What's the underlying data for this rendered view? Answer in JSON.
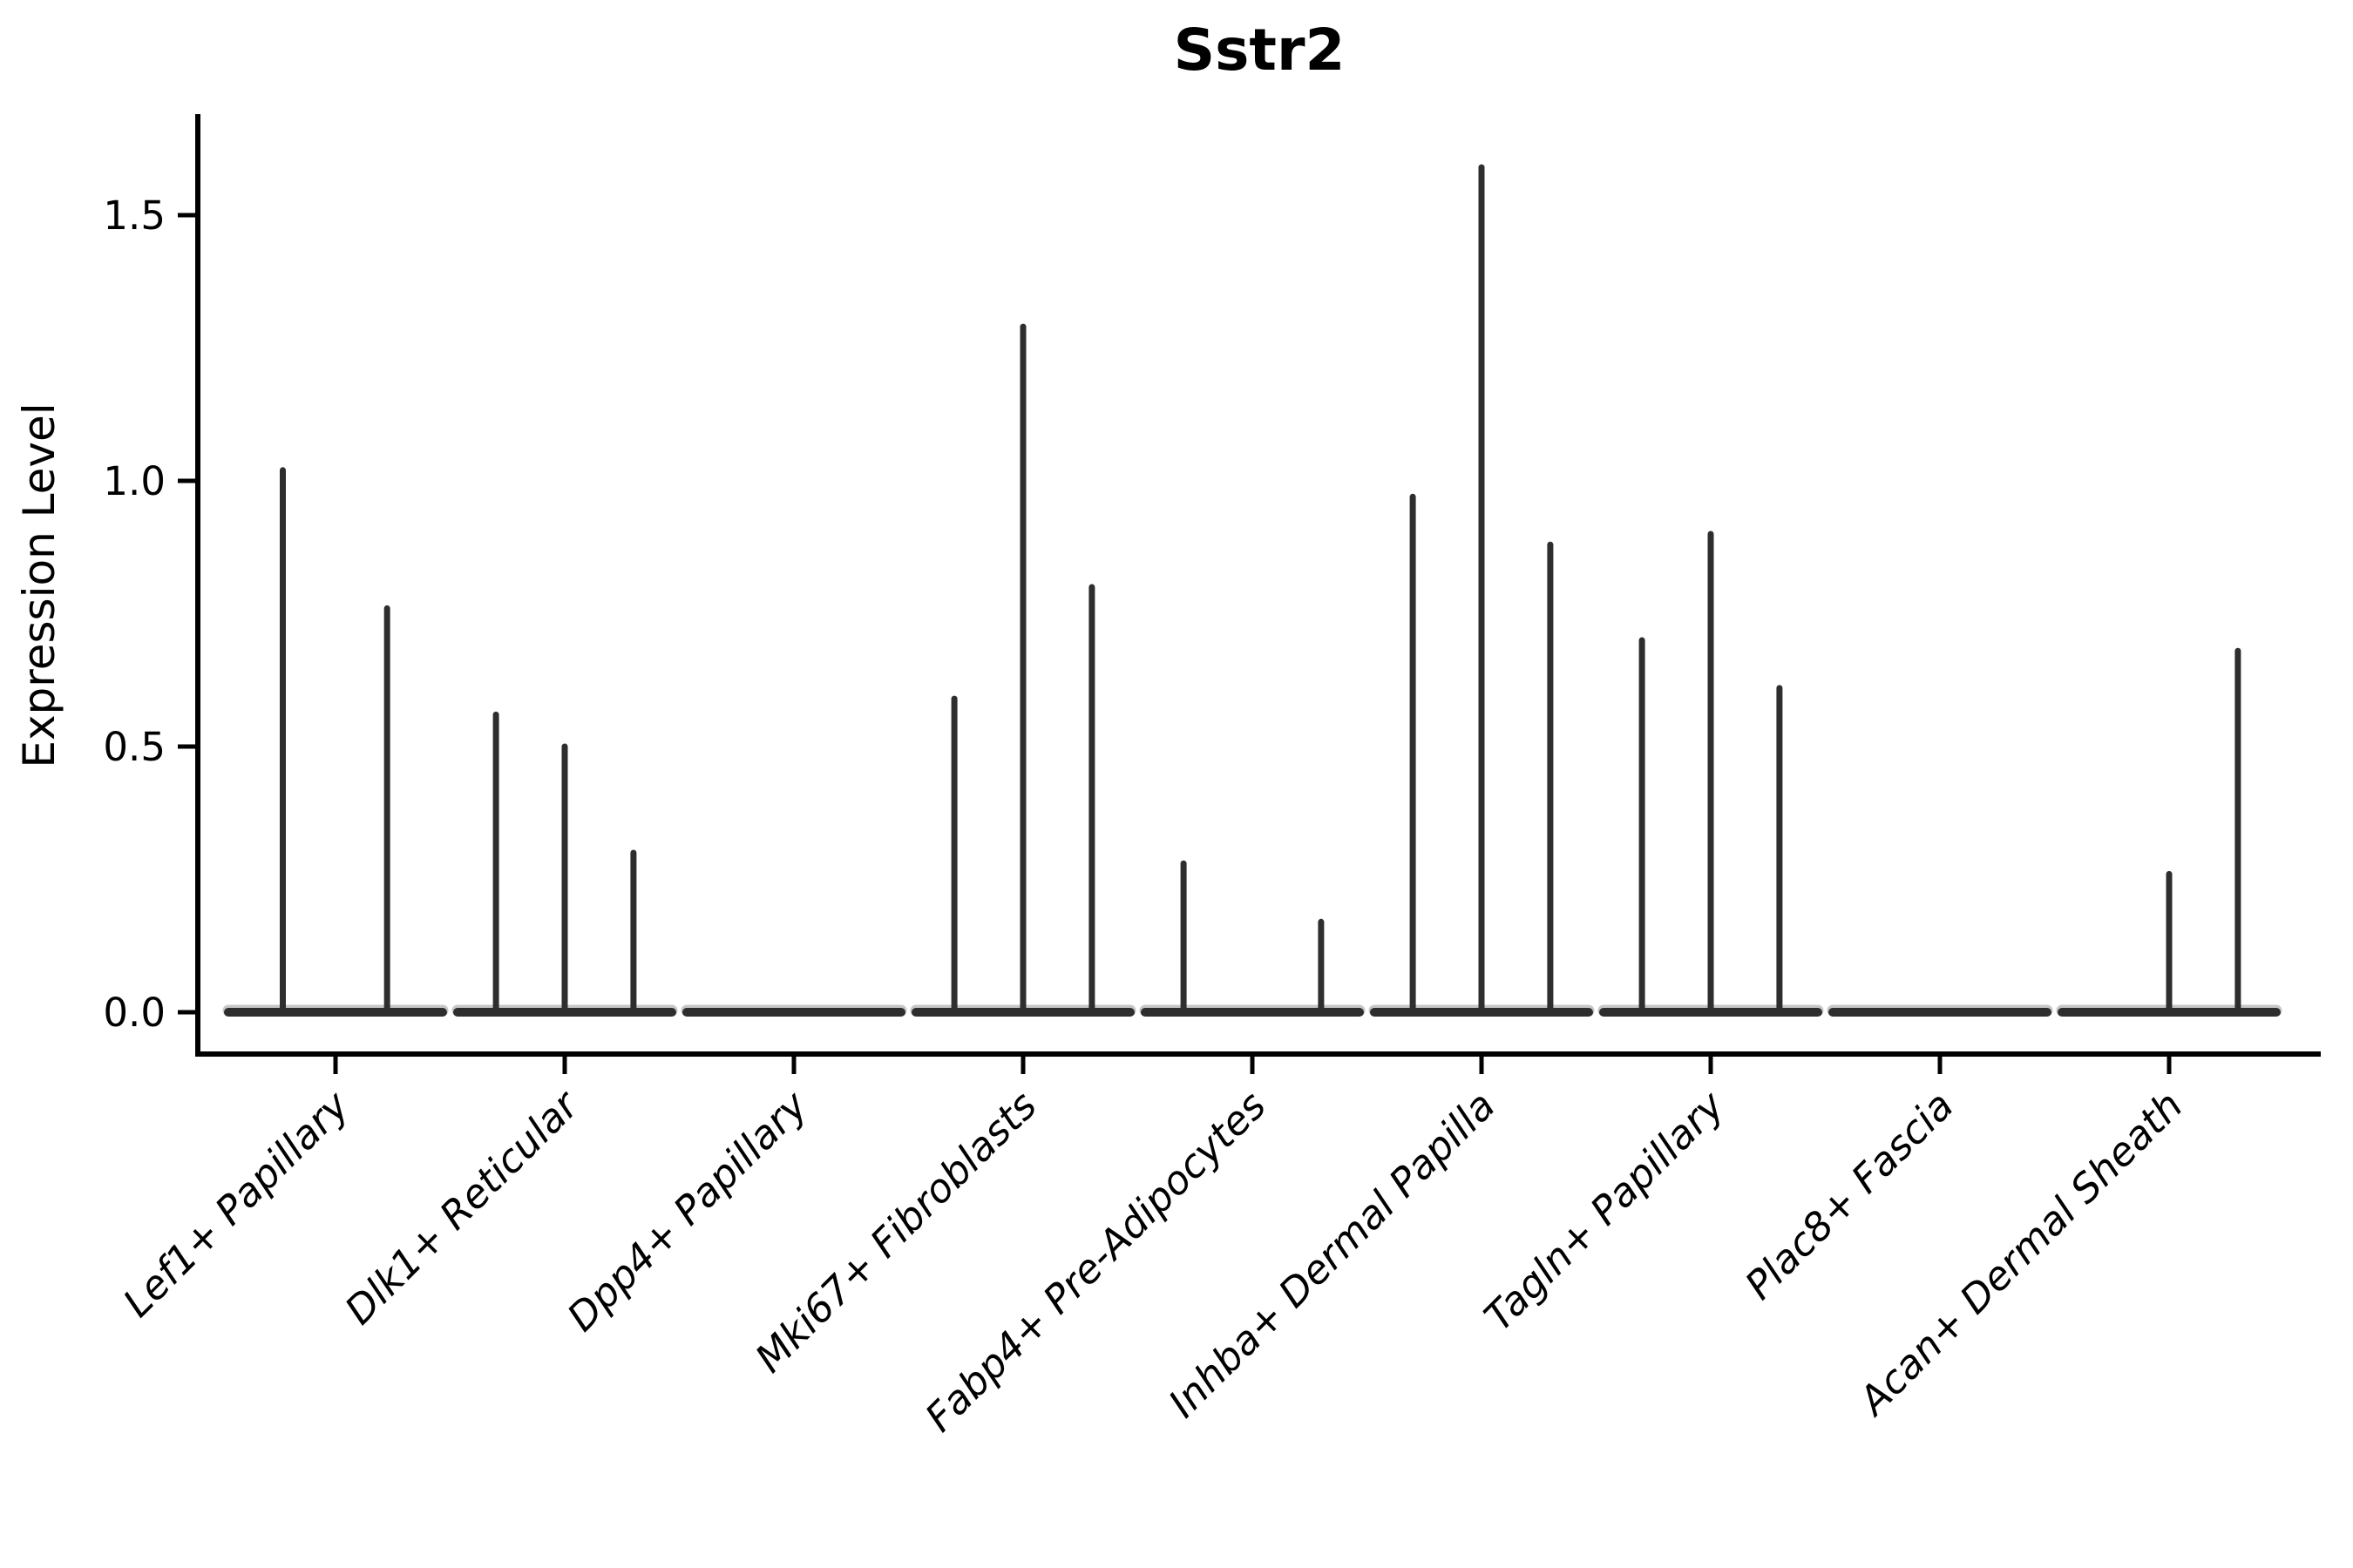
{
  "chart_data": {
    "type": "violin",
    "title": "Sstr2",
    "xlabel": "",
    "ylabel": "Expression Level",
    "legend": "none",
    "grid": false,
    "ylim": [
      -0.08,
      1.69
    ],
    "yticks": [
      {
        "value": 0.0,
        "label": "0.0"
      },
      {
        "value": 0.5,
        "label": "0.5"
      },
      {
        "value": 1.0,
        "label": "1.0"
      },
      {
        "value": 1.5,
        "label": "1.5"
      }
    ],
    "categories": [
      "Lef1+ Papillary",
      "Dlk1+ Reticular",
      "Dpp4+ Papillary",
      "Mki67+ Fibroblasts",
      "Fabp4+ Pre-Adipocytes",
      "Inhba+ Dermal Papilla",
      "Tagln+ Papillary",
      "Plac8+ Fascia",
      "Acan+ Dermal Sheath"
    ],
    "violins": [
      {
        "category": "Lef1+ Papillary",
        "spikes": [
          {
            "offset": -0.23,
            "max": 1.02
          },
          {
            "offset": 0.225,
            "max": 0.76
          }
        ]
      },
      {
        "category": "Dlk1+ Reticular",
        "spikes": [
          {
            "offset": -0.3,
            "max": 0.56
          },
          {
            "offset": 0.0,
            "max": 0.5
          },
          {
            "offset": 0.3,
            "max": 0.3
          }
        ]
      },
      {
        "category": "Dpp4+ Papillary",
        "spikes": []
      },
      {
        "category": "Mki67+ Fibroblasts",
        "spikes": [
          {
            "offset": -0.3,
            "max": 0.59
          },
          {
            "offset": 0.0,
            "max": 1.29
          },
          {
            "offset": 0.3,
            "max": 0.8
          }
        ]
      },
      {
        "category": "Fabp4+ Pre-Adipocytes",
        "spikes": [
          {
            "offset": -0.3,
            "max": 0.28
          },
          {
            "offset": 0.3,
            "max": 0.17
          }
        ]
      },
      {
        "category": "Inhba+ Dermal Papilla",
        "spikes": [
          {
            "offset": -0.3,
            "max": 0.97
          },
          {
            "offset": 0.0,
            "max": 1.59
          },
          {
            "offset": 0.3,
            "max": 0.88
          }
        ]
      },
      {
        "category": "Tagln+ Papillary",
        "spikes": [
          {
            "offset": -0.3,
            "max": 0.7
          },
          {
            "offset": 0.0,
            "max": 0.9
          },
          {
            "offset": 0.3,
            "max": 0.61
          }
        ]
      },
      {
        "category": "Plac8+ Fascia",
        "spikes": []
      },
      {
        "category": "Acan+ Dermal Sheath",
        "spikes": [
          {
            "offset": 0.0,
            "max": 0.26
          },
          {
            "offset": 0.3,
            "max": 0.68
          }
        ]
      }
    ],
    "colors": {
      "violin_line": "#2e2e2e",
      "violin_base_halo": "#9a9a9a",
      "axis": "#000000",
      "background": "#ffffff"
    }
  }
}
